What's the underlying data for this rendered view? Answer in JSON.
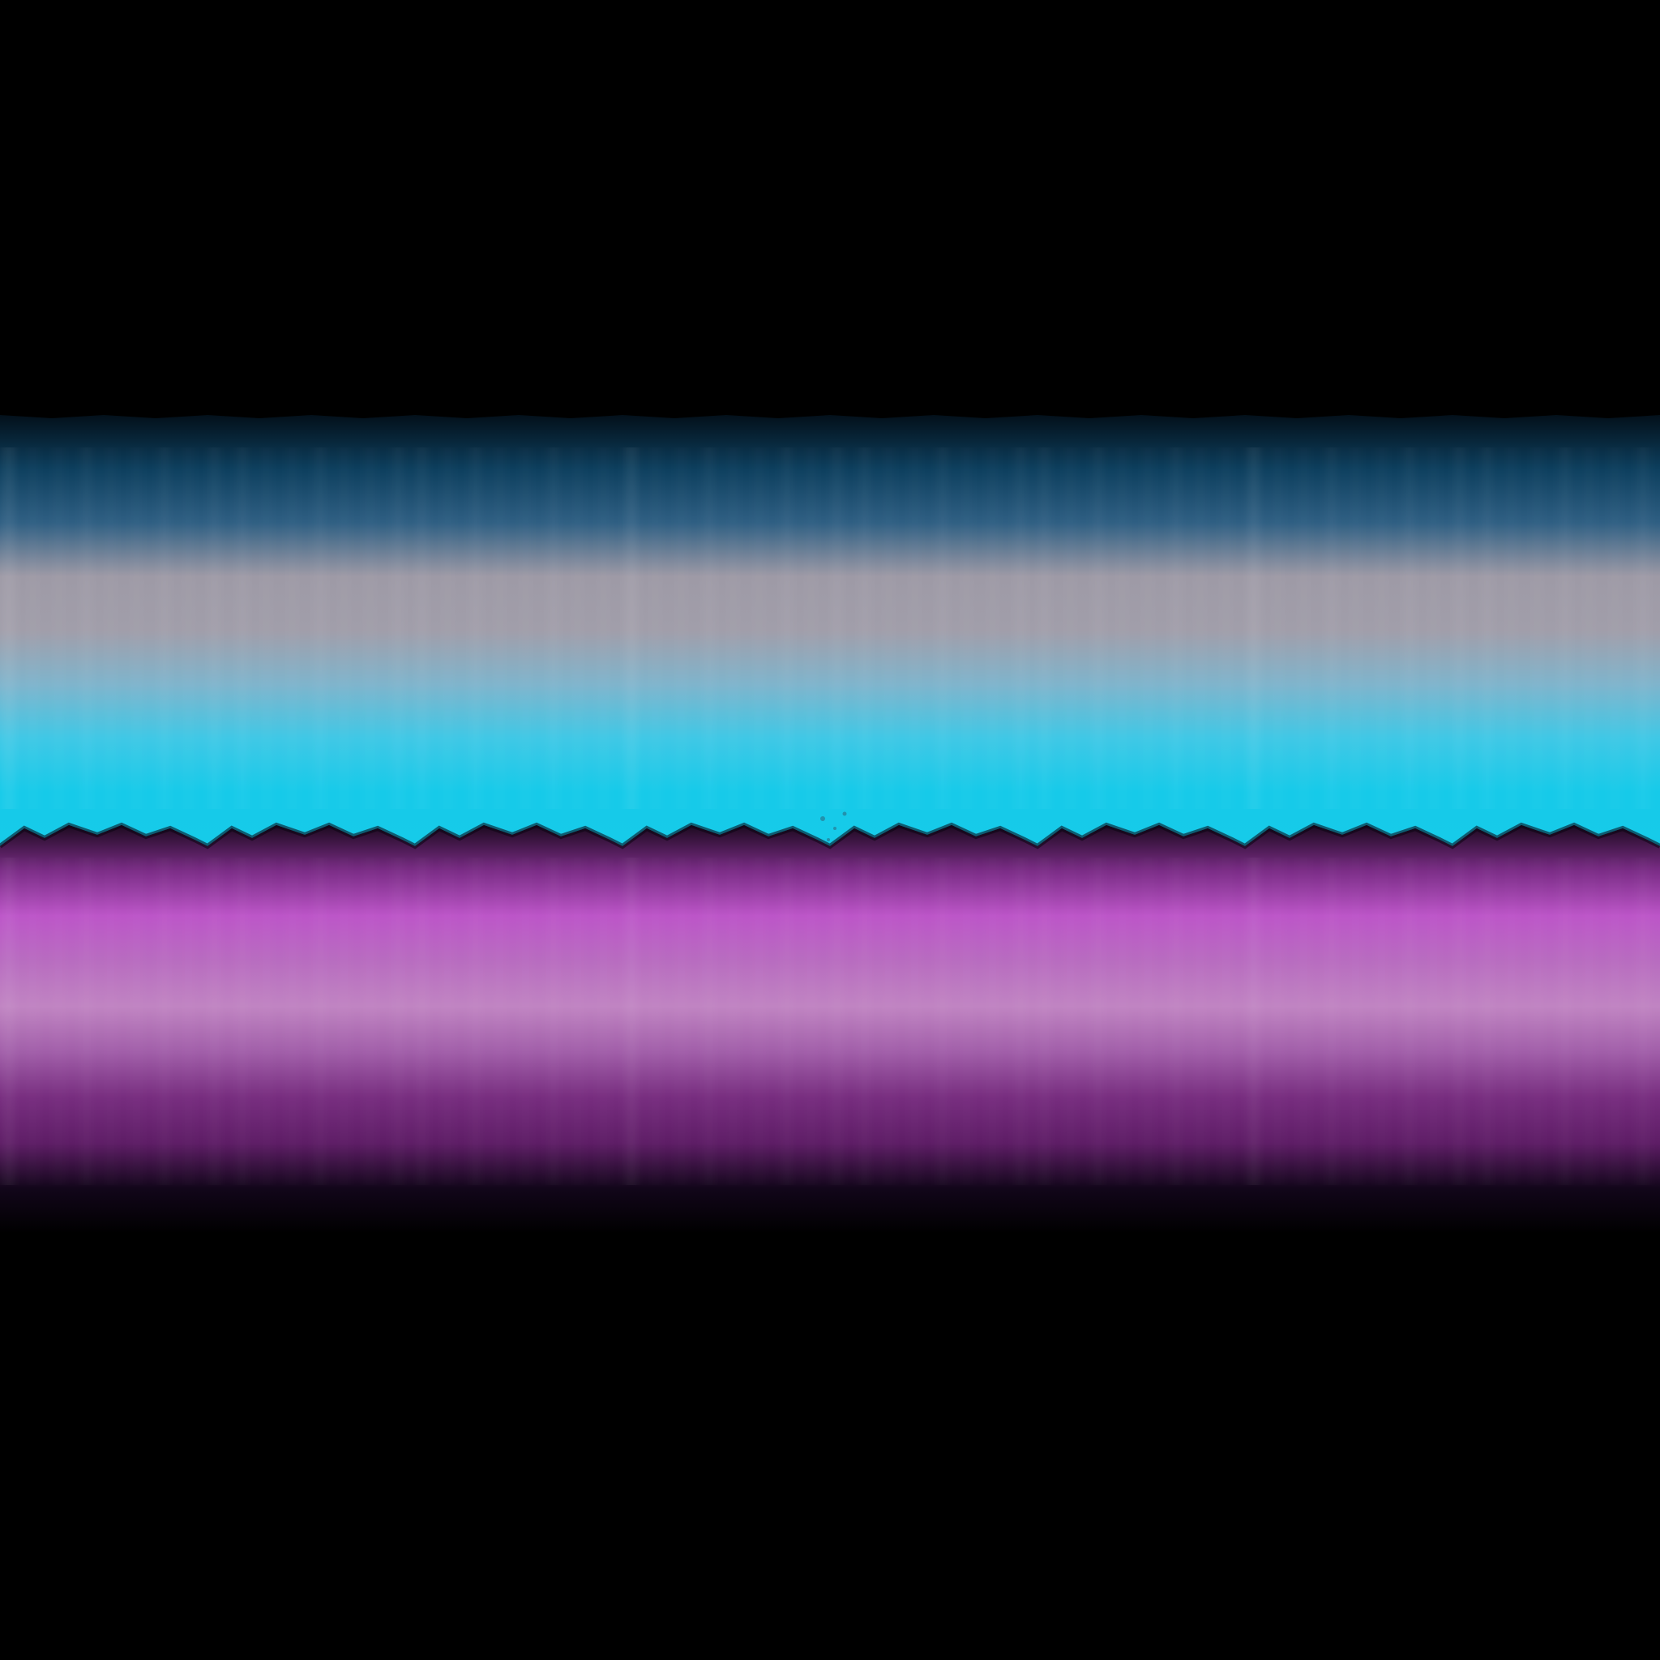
{
  "artwork": {
    "background_color": "#000000",
    "upper_band": {
      "stops": [
        "#03101a",
        "#0d3f5e",
        "#2f5f83",
        "#9e9aa6",
        "#a19eaa",
        "#7fb4cc",
        "#3fc8e6",
        "#16cae9",
        "#16cbe9"
      ]
    },
    "lower_band": {
      "stops": [
        "#1c0a1f",
        "#7a2c86",
        "#bc55c8",
        "#b86cc0",
        "#c084c2",
        "#a15ea9",
        "#772d7f",
        "#5e1d66",
        "#12061a",
        "#000000"
      ]
    }
  }
}
